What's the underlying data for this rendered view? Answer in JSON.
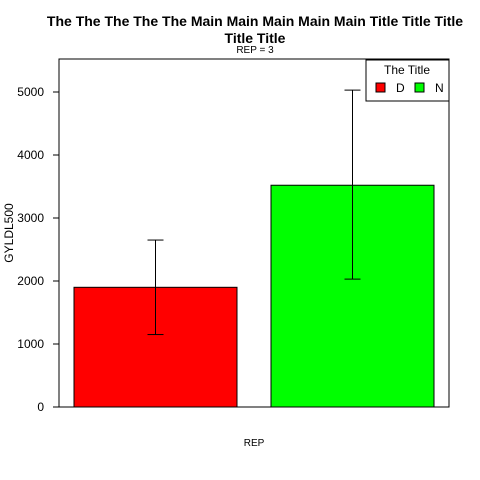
{
  "chart_data": {
    "type": "bar",
    "title_line1": "The The The The The Main Main Main Main Main Title Title Title",
    "title_line2": "Title Title",
    "subtitle": "REP = 3",
    "xlabel": "REP",
    "ylabel": "GYLDL500",
    "ylim": [
      0,
      5500
    ],
    "yticks": [
      0,
      1000,
      2000,
      3000,
      4000,
      5000
    ],
    "grid": false,
    "categories": [
      "D",
      "N"
    ],
    "values": [
      1900,
      3520
    ],
    "error_lower": [
      1150,
      2030
    ],
    "error_upper": [
      2650,
      5030
    ],
    "colors": [
      "#ff0000",
      "#00ff00"
    ],
    "legend": {
      "title": "The Title",
      "placement": "top-right",
      "entries": [
        "D",
        "N"
      ]
    }
  }
}
